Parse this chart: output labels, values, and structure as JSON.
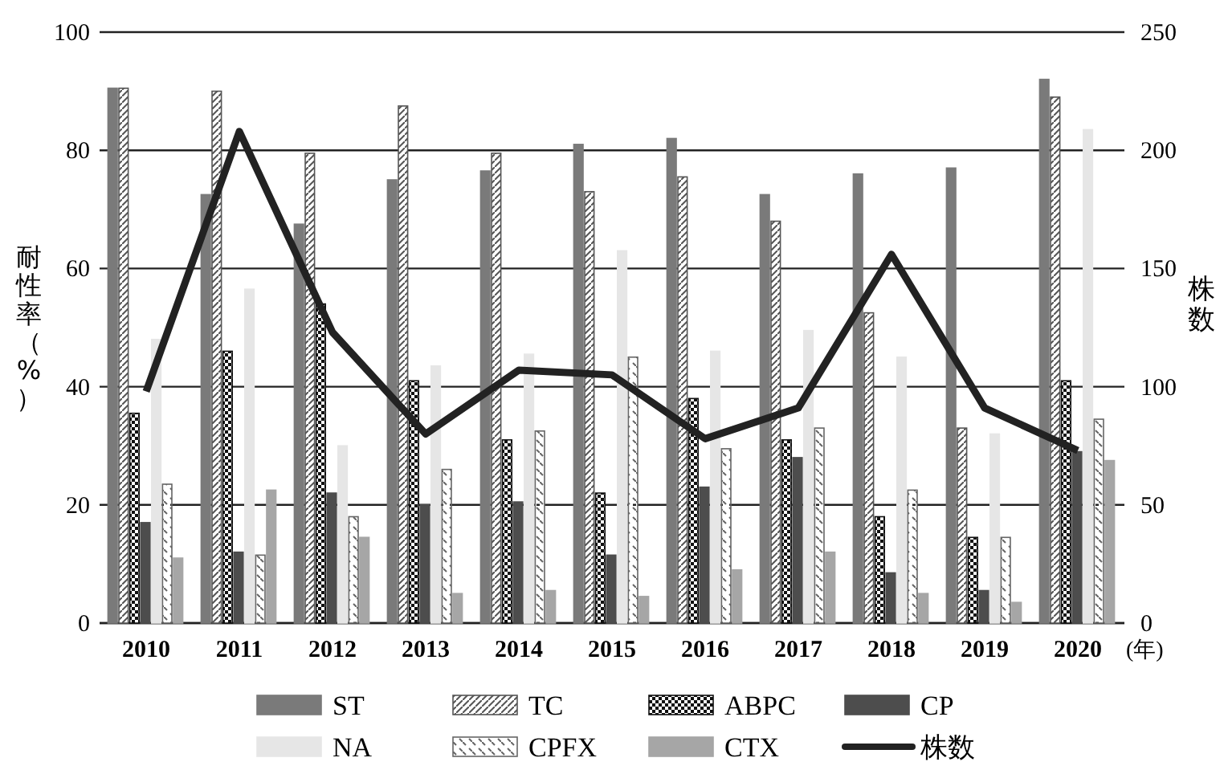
{
  "chart_data": {
    "type": "bar",
    "categories": [
      "2010",
      "2011",
      "2012",
      "2013",
      "2014",
      "2015",
      "2016",
      "2017",
      "2018",
      "2019",
      "2020"
    ],
    "xlabel": "(年)",
    "ylabel": "耐性率（%）",
    "y2label": "株数",
    "ylim": [
      0,
      100
    ],
    "yticks": [
      0,
      20,
      40,
      60,
      80,
      100
    ],
    "y2lim": [
      0,
      250
    ],
    "y2ticks": [
      0,
      50,
      100,
      150,
      200,
      250
    ],
    "grid": "y",
    "legend": "bottom",
    "series": [
      {
        "name": "ST",
        "color": "#7a7a7a",
        "values": [
          90.5,
          72.5,
          67.5,
          75,
          76.5,
          81,
          82,
          72.5,
          76,
          77,
          92
        ]
      },
      {
        "name": "TC",
        "color": "#555555",
        "values": [
          90.5,
          90,
          79.5,
          87.5,
          79.5,
          73,
          75.5,
          68,
          52.5,
          33,
          89
        ]
      },
      {
        "name": "ABPC",
        "color": "#111111",
        "values": [
          35.5,
          46,
          54,
          41,
          31,
          22,
          38,
          31,
          18,
          14.5,
          41
        ]
      },
      {
        "name": "CP",
        "color": "#4d4d4d",
        "values": [
          17,
          12,
          22,
          20,
          20.5,
          11.5,
          23,
          28,
          8.5,
          5.5,
          29
        ]
      },
      {
        "name": "NA",
        "color": "#e6e6e6",
        "values": [
          48,
          56.5,
          30,
          43.5,
          45.5,
          63,
          46,
          49.5,
          45,
          32,
          83.5
        ]
      },
      {
        "name": "CPFX",
        "color": "#666666",
        "values": [
          23.5,
          11.5,
          18,
          26,
          32.5,
          45,
          29.5,
          33,
          22.5,
          14.5,
          34.5
        ]
      },
      {
        "name": "CTX",
        "color": "#a6a6a6",
        "values": [
          11,
          22.5,
          14.5,
          5,
          5.5,
          4.5,
          9,
          12,
          5,
          3.5,
          27.5
        ]
      },
      {
        "name": "株数",
        "type": "line",
        "axis": "y2",
        "color": "#222222",
        "marker": "none",
        "line_style": "solid",
        "values": [
          98,
          208,
          123,
          80,
          107,
          105,
          78,
          91,
          156,
          91,
          73
        ]
      }
    ]
  }
}
